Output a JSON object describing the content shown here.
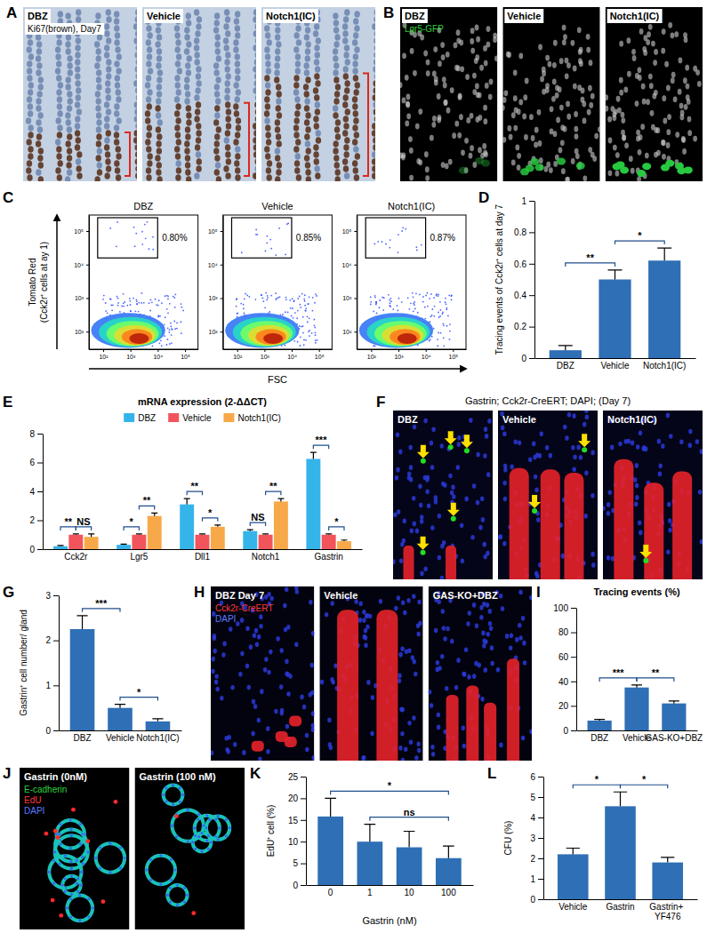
{
  "chart_data": [
    {
      "type": "image",
      "panel": "A",
      "labels": [
        "DBZ",
        "Vehicle",
        "Notch1(IC)"
      ],
      "annotations": [
        "Ki67(brown), Day7"
      ],
      "color": "#c3d1e2"
    },
    {
      "type": "image",
      "panel": "B",
      "labels": [
        "DBZ",
        "Vehicle",
        "Notch1(IC)"
      ],
      "annotations": [
        "Lgr5-GFP"
      ],
      "color": "#000000"
    },
    {
      "type": "flow",
      "panel": "C",
      "titles": [
        "DBZ",
        "Vehicle",
        "Notch1(IC)"
      ],
      "gate_labels": [
        "0.80%",
        "0.85%",
        "0.87%"
      ],
      "y_label": "Tomato Red",
      "y_sublabel": "(Cck2r⁺ cells at ay 1)",
      "x_label": "FSC",
      "log": true,
      "xlim": [
        30,
        300000
      ],
      "xticks": [
        {
          "value": 100,
          "label": "10²"
        },
        {
          "value": 1000,
          "label": "10³"
        },
        {
          "value": 10000,
          "label": "10⁴"
        },
        {
          "value": 100000,
          "label": "10⁵"
        }
      ],
      "ylim": [
        30,
        300000
      ],
      "yticks": [
        {
          "value": 100,
          "label": "10²"
        },
        {
          "value": 1000,
          "label": "10³"
        },
        {
          "value": 10000,
          "label": "10⁴"
        },
        {
          "value": 100000,
          "label": "10⁵"
        }
      ]
    },
    {
      "type": "bar",
      "panel": "D",
      "y_label": "Tracing events of Cck2r⁺ cells  at day 7",
      "categories": [
        "DBZ",
        "Vehicle",
        "Notch1(IC)"
      ],
      "values": [
        0.05,
        0.5,
        0.62
      ],
      "errors": [
        0.03,
        0.06,
        0.08
      ],
      "color": "#2f6fb5",
      "ylim": [
        0,
        1
      ],
      "yticks": [
        0,
        0.2,
        0.4,
        0.6,
        0.8,
        1
      ],
      "significance": [
        {
          "from": 0,
          "to": 1,
          "label": "**"
        },
        {
          "from": 1,
          "to": 2,
          "label": "*"
        }
      ]
    },
    {
      "type": "bar",
      "panel": "E",
      "title": "mRNA expression (2-ΔΔCT)",
      "categories": [
        "Cck2r",
        "Lgr5",
        "Dll1",
        "Notch1",
        "Gastrin"
      ],
      "series": [
        {
          "name": "DBZ",
          "color": "#35b4ea",
          "values": [
            0.2,
            0.3,
            3.1,
            1.25,
            6.25
          ],
          "errors": [
            0.05,
            0.05,
            0.4,
            0.1,
            0.45
          ]
        },
        {
          "name": "Vehicle",
          "color": "#f2545b",
          "values": [
            1,
            1,
            1,
            1,
            1
          ],
          "errors": [
            0.05,
            0.05,
            0.05,
            0.05,
            0.05
          ]
        },
        {
          "name": "Notch1(IC)",
          "color": "#f7a94a",
          "values": [
            0.85,
            2.3,
            1.55,
            3.3,
            0.55
          ],
          "errors": [
            0.2,
            0.2,
            0.12,
            0.2,
            0.08
          ]
        }
      ],
      "ylim": [
        0,
        8
      ],
      "yticks": [
        0,
        2,
        4,
        6,
        8
      ],
      "legend": "top",
      "significance": [
        {
          "category": 0,
          "from": 0,
          "to": 1,
          "label": "**"
        },
        {
          "category": 0,
          "from": 1,
          "to": 2,
          "label": "NS"
        },
        {
          "category": 1,
          "from": 0,
          "to": 1,
          "label": "*"
        },
        {
          "category": 1,
          "from": 1,
          "to": 2,
          "label": "**"
        },
        {
          "category": 2,
          "from": 0,
          "to": 1,
          "label": "**"
        },
        {
          "category": 2,
          "from": 1,
          "to": 2,
          "label": "*"
        },
        {
          "category": 3,
          "from": 0,
          "to": 1,
          "label": "NS"
        },
        {
          "category": 3,
          "from": 1,
          "to": 2,
          "label": "**"
        },
        {
          "category": 4,
          "from": 0,
          "to": 1,
          "label": "***"
        },
        {
          "category": 4,
          "from": 1,
          "to": 2,
          "label": "*"
        }
      ]
    },
    {
      "type": "image",
      "panel": "F",
      "title": "Gastrin; Cck2r-CreERT; DAPI; (Day 7)",
      "labels": [
        "DBZ",
        "Vehicle",
        "Notch1(IC)"
      ],
      "color": "#05051a"
    },
    {
      "type": "bar",
      "panel": "G",
      "y_label": "Gastrin⁺ cell number/ gland",
      "categories": [
        "DBZ",
        "Vehicle",
        "Notch1(IC)"
      ],
      "values": [
        2.25,
        0.5,
        0.2
      ],
      "errors": [
        0.3,
        0.08,
        0.06
      ],
      "color": "#2f6fb5",
      "ylim": [
        0,
        3
      ],
      "yticks": [
        0,
        1,
        2,
        3
      ],
      "significance": [
        {
          "from": 0,
          "to": 1,
          "label": "***"
        },
        {
          "from": 1,
          "to": 2,
          "label": "*"
        }
      ]
    },
    {
      "type": "image",
      "panel": "H",
      "labels": [
        "DBZ Day 7",
        "Vehicle",
        "GAS-KO+DBZ"
      ],
      "annotations": [
        "Cck2r-CreERT",
        "DAPI"
      ],
      "color": "#03030f"
    },
    {
      "type": "bar",
      "panel": "I",
      "title": "Tracing events (%)",
      "categories": [
        "DBZ",
        "Vehicle",
        "GAS-KO+DBZ"
      ],
      "values": [
        8,
        35,
        22
      ],
      "errors": [
        1,
        2,
        2
      ],
      "color": "#2f6fb5",
      "ylim": [
        0,
        100
      ],
      "yticks": [
        0,
        20,
        40,
        60,
        80,
        100
      ],
      "significance": [
        {
          "from": 0,
          "to": 1,
          "label": "***"
        },
        {
          "from": 1,
          "to": 2,
          "label": "**"
        }
      ]
    },
    {
      "type": "image",
      "panel": "J",
      "labels": [
        "Gastrin (0nM)",
        "Gastrin (100 nM)"
      ],
      "annotations": [
        "E-cadherin",
        "EdU",
        "DAPI"
      ],
      "color": "#000000"
    },
    {
      "type": "bar",
      "panel": "K",
      "y_label": "EdU⁺ cell (%)",
      "x_label": "Gastrin (nM)",
      "categories": [
        "0",
        "1",
        "10",
        "100"
      ],
      "values": [
        15.8,
        10,
        8.7,
        6.2
      ],
      "errors": [
        4.2,
        4,
        3.7,
        2.8
      ],
      "color": "#2f6fb5",
      "ylim": [
        0,
        25
      ],
      "yticks": [
        0,
        5,
        10,
        15,
        20,
        25
      ],
      "significance": [
        {
          "from": 0,
          "to": 3,
          "label": "*"
        },
        {
          "from": 1,
          "to": 3,
          "label": "ns"
        }
      ]
    },
    {
      "type": "bar",
      "panel": "L",
      "y_label": "CFU (%)",
      "categories": [
        "Vehicle",
        "Gastrin",
        "Gastrin+ YF476"
      ],
      "values": [
        2.2,
        4.55,
        1.8
      ],
      "errors": [
        0.3,
        0.7,
        0.25
      ],
      "color": "#2f6fb5",
      "ylim": [
        0,
        6
      ],
      "yticks": [
        0,
        1,
        2,
        3,
        4,
        5,
        6
      ],
      "significance": [
        {
          "from": 0,
          "to": 1,
          "label": "*"
        },
        {
          "from": 1,
          "to": 2,
          "label": "*"
        }
      ]
    }
  ]
}
